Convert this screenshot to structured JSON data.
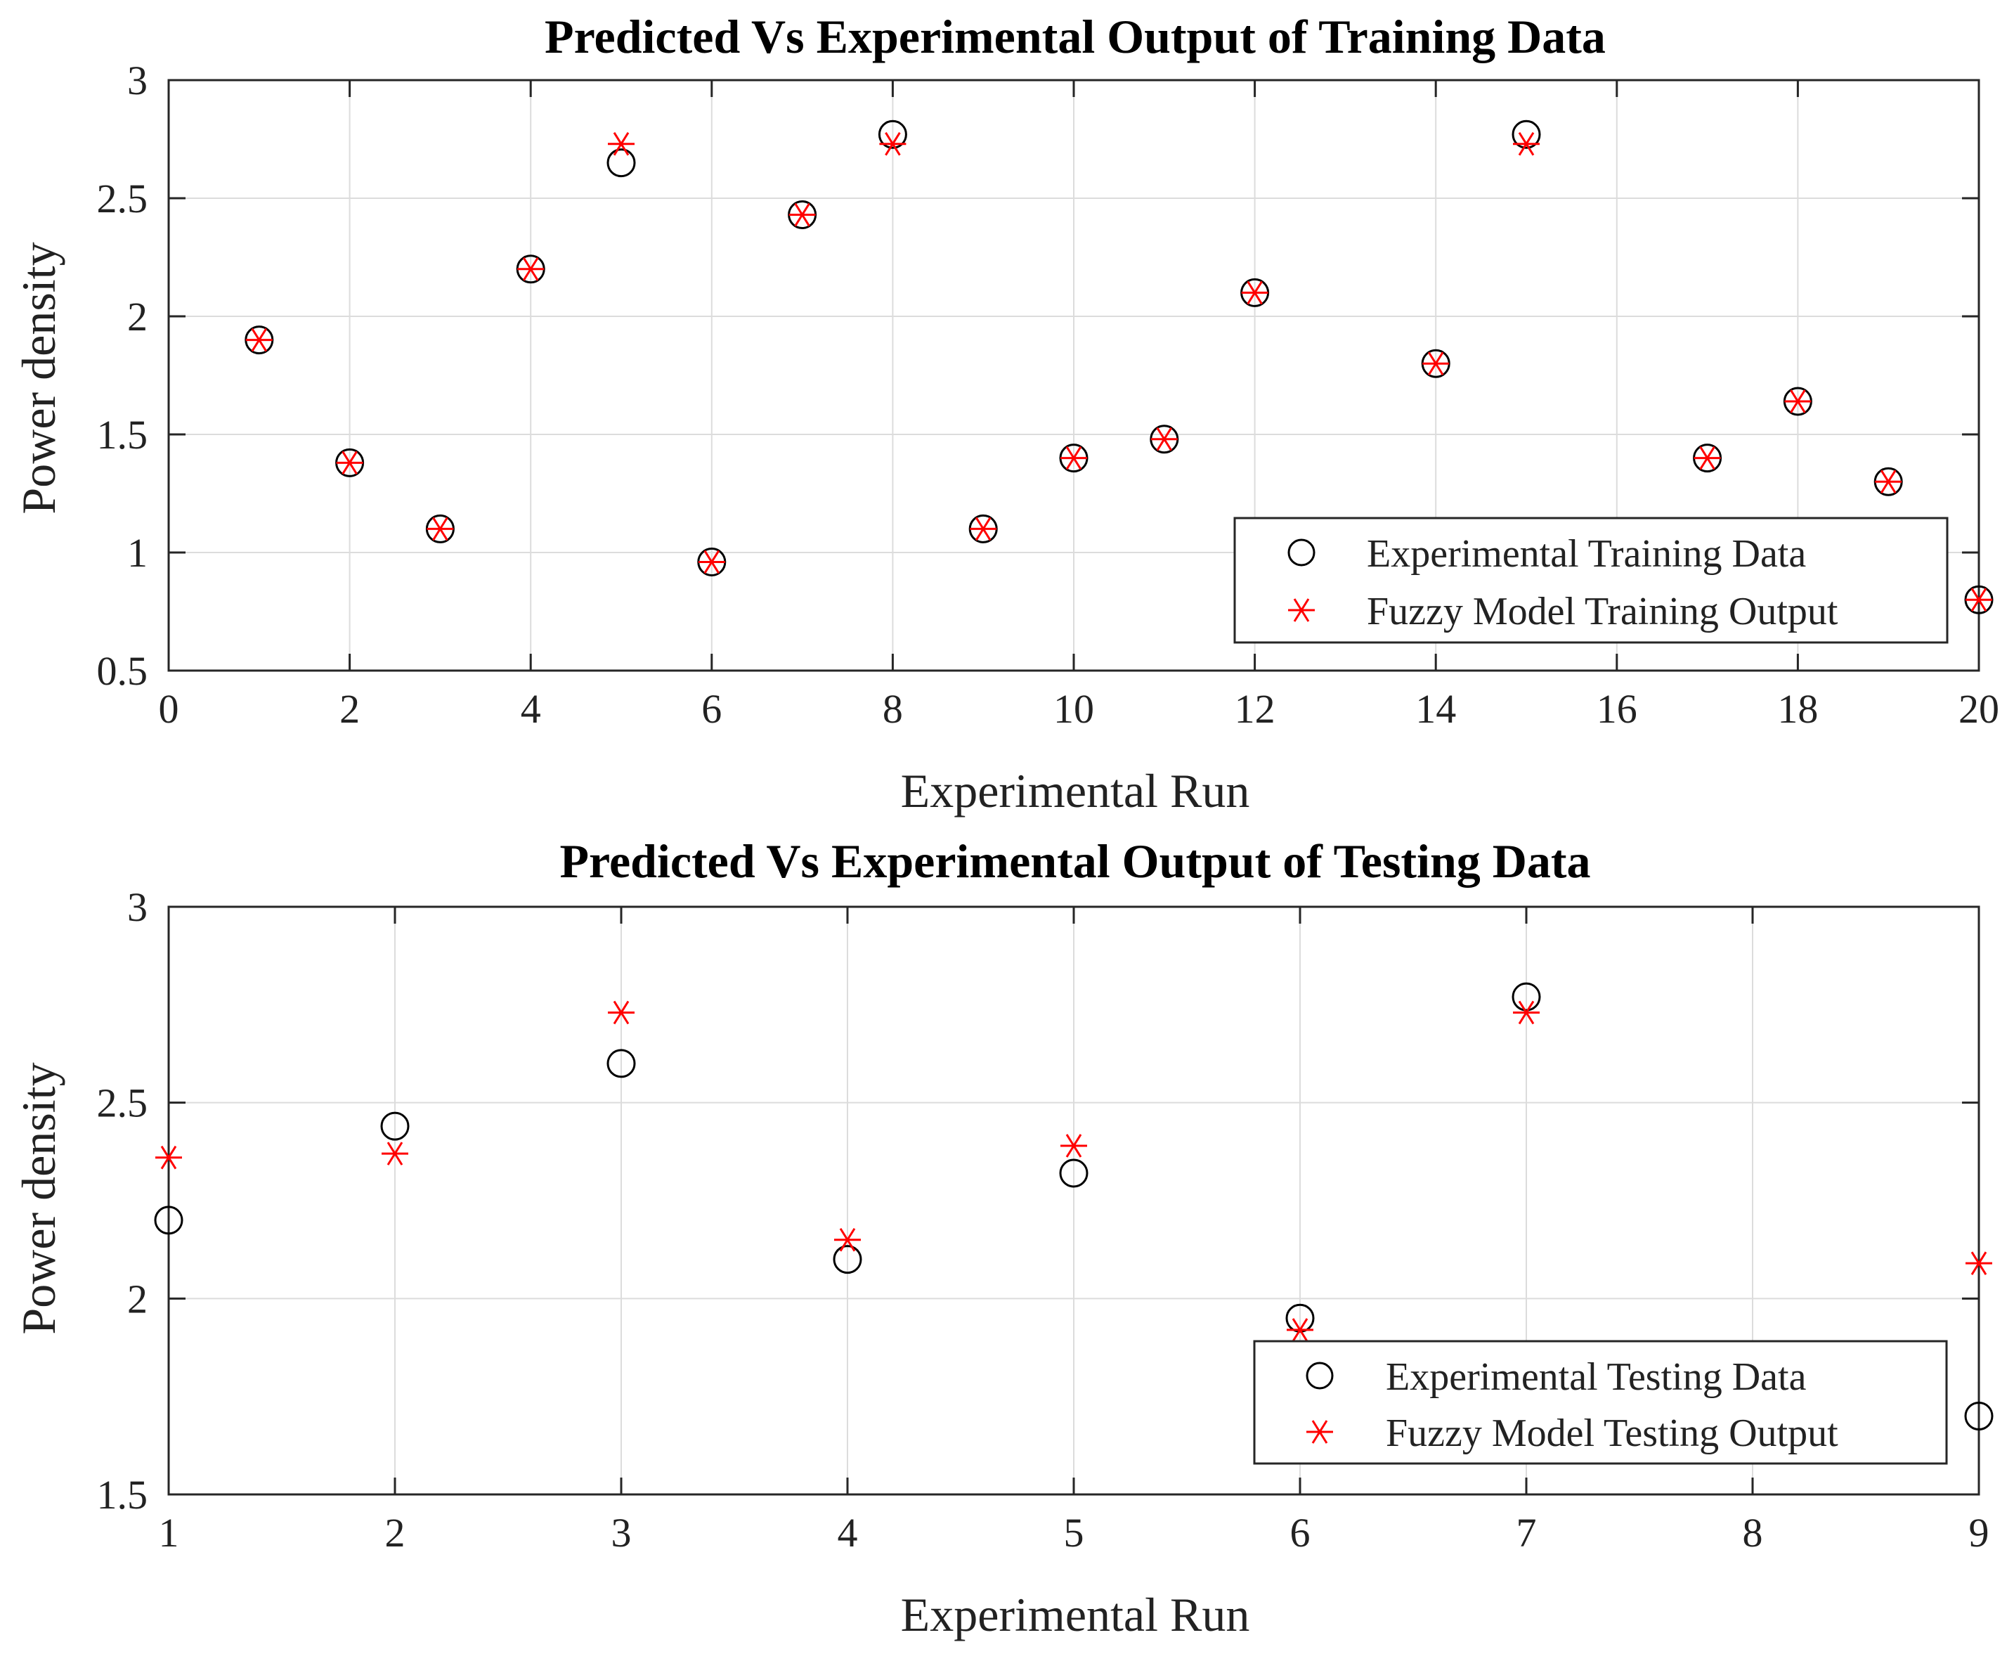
{
  "chart_data": [
    {
      "type": "scatter",
      "title": "Predicted Vs Experimental Output of Training Data",
      "xlabel": "Experimental Run",
      "ylabel": "Power density",
      "xlim": [
        0,
        20
      ],
      "ylim": [
        0.5,
        3
      ],
      "xticks": [
        0,
        2,
        4,
        6,
        8,
        10,
        12,
        14,
        16,
        18,
        20
      ],
      "yticks": [
        0.5,
        1,
        1.5,
        2,
        2.5,
        3
      ],
      "ytick_labels": [
        "0.5",
        "1",
        "1.5",
        "2",
        "2.5",
        "3"
      ],
      "grid": true,
      "legend_position": "bottom-right",
      "series": [
        {
          "name": "Experimental Training Data",
          "marker": "circle",
          "color": "#000000",
          "x": [
            1,
            2,
            3,
            4,
            5,
            6,
            7,
            8,
            9,
            10,
            11,
            12,
            14,
            15,
            17,
            18,
            19,
            20
          ],
          "y": [
            1.9,
            1.38,
            1.1,
            2.2,
            2.65,
            0.96,
            2.43,
            2.77,
            1.1,
            1.4,
            1.48,
            2.1,
            1.8,
            2.77,
            1.4,
            1.64,
            1.3,
            0.8
          ]
        },
        {
          "name": "Fuzzy Model Training Output",
          "marker": "asterisk",
          "color": "#ff0000",
          "x": [
            1,
            2,
            3,
            4,
            5,
            6,
            7,
            8,
            9,
            10,
            11,
            12,
            14,
            15,
            17,
            18,
            19,
            20
          ],
          "y": [
            1.9,
            1.38,
            1.1,
            2.2,
            2.73,
            0.96,
            2.43,
            2.73,
            1.1,
            1.4,
            1.48,
            2.1,
            1.8,
            2.73,
            1.4,
            1.64,
            1.3,
            0.8
          ]
        }
      ]
    },
    {
      "type": "scatter",
      "title": "Predicted Vs Experimental Output of Testing Data",
      "xlabel": "Experimental Run",
      "ylabel": "Power density",
      "xlim": [
        1,
        9
      ],
      "ylim": [
        1.5,
        3
      ],
      "xticks": [
        1,
        2,
        3,
        4,
        5,
        6,
        7,
        8,
        9
      ],
      "yticks": [
        1.5,
        2,
        2.5,
        3
      ],
      "ytick_labels": [
        "1.5",
        "2",
        "2.5",
        "3"
      ],
      "grid": true,
      "legend_position": "bottom-right",
      "series": [
        {
          "name": "Experimental Testing Data",
          "marker": "circle",
          "color": "#000000",
          "x": [
            1,
            2,
            3,
            4,
            5,
            6,
            7,
            9
          ],
          "y": [
            2.2,
            2.44,
            2.6,
            2.1,
            2.32,
            1.95,
            2.77,
            1.7
          ]
        },
        {
          "name": "Fuzzy Model Testing Output",
          "marker": "asterisk",
          "color": "#ff0000",
          "x": [
            1,
            2,
            3,
            4,
            5,
            6,
            7,
            9
          ],
          "y": [
            2.36,
            2.37,
            2.73,
            2.15,
            2.39,
            1.92,
            2.73,
            2.09
          ]
        }
      ]
    }
  ]
}
